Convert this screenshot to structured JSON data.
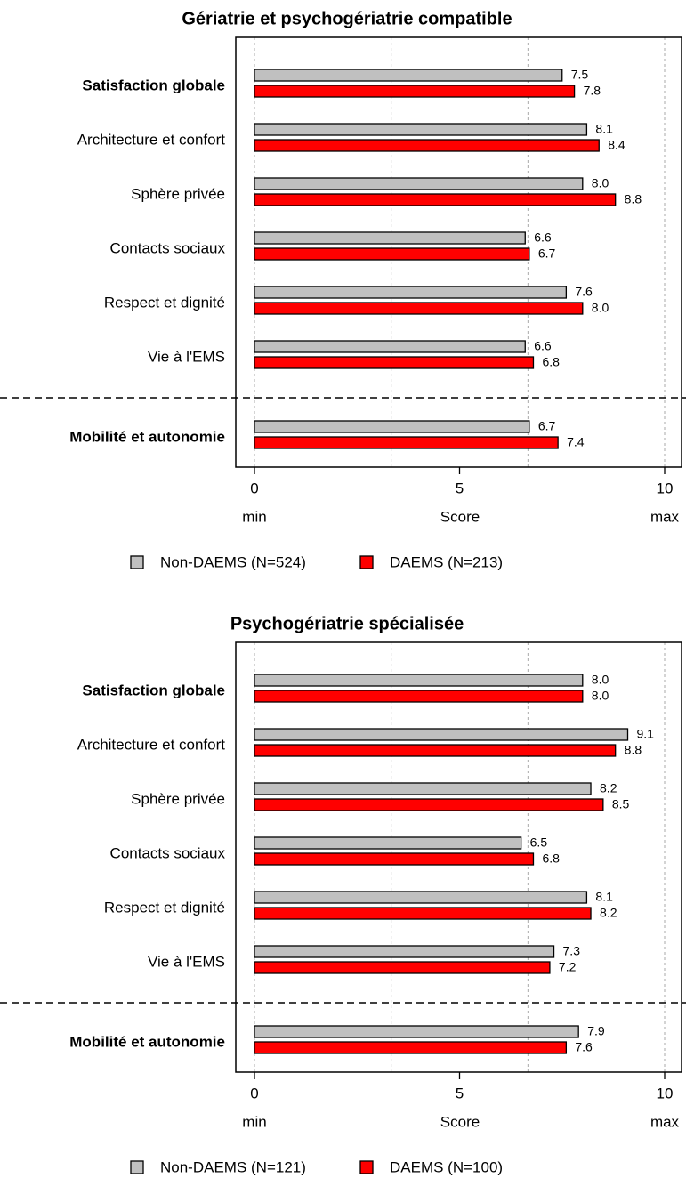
{
  "chart_data": [
    {
      "type": "hbar",
      "title": "Gériatrie et psychogériatrie compatible",
      "categories": [
        "Satisfaction globale",
        "Architecture et confort",
        "Sphère privée",
        "Contacts sociaux",
        "Respect et dignité",
        "Vie à l'EMS",
        "Mobilité et autonomie"
      ],
      "emphasis": [
        true,
        false,
        false,
        false,
        false,
        false,
        true
      ],
      "separator_after": 5,
      "series": [
        {
          "name": "Non-DAEMS (N=524)",
          "color": "#c0c0c0",
          "values": [
            7.5,
            8.1,
            8.0,
            6.6,
            7.6,
            6.6,
            6.7
          ],
          "value_labels": [
            "7.5",
            "8.1",
            "8.0",
            "6.6",
            "7.6",
            "6.6",
            "6.7"
          ]
        },
        {
          "name": "DAEMS (N=213)",
          "color": "#ff0000",
          "values": [
            7.8,
            8.4,
            8.8,
            6.7,
            8.0,
            6.8,
            7.4
          ],
          "value_labels": [
            "7.8",
            "8.4",
            "8.8",
            "6.7",
            "8.0",
            "6.8",
            "7.4"
          ]
        }
      ],
      "xlim": [
        0,
        10
      ],
      "xticks": [
        0,
        5,
        10
      ],
      "xgrid": [
        0,
        3.333,
        6.667,
        10
      ],
      "xlabel": "Score",
      "xmin_label": "min",
      "xmax_label": "max"
    },
    {
      "type": "hbar",
      "title": "Psychogériatrie spécialisée",
      "categories": [
        "Satisfaction globale",
        "Architecture et confort",
        "Sphère privée",
        "Contacts sociaux",
        "Respect et dignité",
        "Vie à l'EMS",
        "Mobilité et autonomie"
      ],
      "emphasis": [
        true,
        false,
        false,
        false,
        false,
        false,
        true
      ],
      "separator_after": 5,
      "series": [
        {
          "name": "Non-DAEMS (N=121)",
          "color": "#c0c0c0",
          "values": [
            8.0,
            9.1,
            8.2,
            6.5,
            8.1,
            7.3,
            7.9
          ],
          "value_labels": [
            "8.0",
            "9.1",
            "8.2",
            "6.5",
            "8.1",
            "7.3",
            "7.9"
          ]
        },
        {
          "name": "DAEMS (N=100)",
          "color": "#ff0000",
          "values": [
            8.0,
            8.8,
            8.5,
            6.8,
            8.2,
            7.2,
            7.6
          ],
          "value_labels": [
            "8.0",
            "8.8",
            "8.5",
            "6.8",
            "8.2",
            "7.2",
            "7.6"
          ]
        }
      ],
      "xlim": [
        0,
        10
      ],
      "xticks": [
        0,
        5,
        10
      ],
      "xgrid": [
        0,
        3.333,
        6.667,
        10
      ],
      "xlabel": "Score",
      "xmin_label": "min",
      "xmax_label": "max"
    }
  ]
}
